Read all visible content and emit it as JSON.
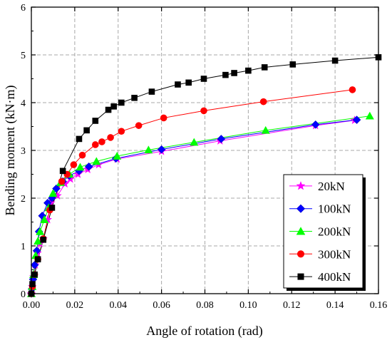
{
  "chart_data": {
    "type": "line",
    "title": "",
    "xlabel": "Angle of rotation (rad)",
    "ylabel": "Bending moment (kN·m)",
    "xlim": [
      0,
      0.16
    ],
    "ylim": [
      0,
      6
    ],
    "xticks": [
      "0.00",
      "0.02",
      "0.04",
      "0.06",
      "0.08",
      "0.10",
      "0.12",
      "0.14",
      "0.16"
    ],
    "yticks": [
      "0",
      "1",
      "2",
      "3",
      "4",
      "5",
      "6"
    ],
    "grid": true,
    "legend_position": "bottom-right",
    "series": [
      {
        "name": "20kN",
        "color": "#ff00ff",
        "marker": "star",
        "points": [
          [
            0.0,
            0.0
          ],
          [
            0.0004,
            0.15
          ],
          [
            0.001,
            0.35
          ],
          [
            0.0018,
            0.6
          ],
          [
            0.0028,
            0.85
          ],
          [
            0.004,
            1.05
          ],
          [
            0.0055,
            1.15
          ],
          [
            0.0075,
            1.55
          ],
          [
            0.009,
            1.9
          ],
          [
            0.012,
            2.05
          ],
          [
            0.0155,
            2.3
          ],
          [
            0.018,
            2.4
          ],
          [
            0.0215,
            2.5
          ],
          [
            0.026,
            2.6
          ],
          [
            0.031,
            2.7
          ],
          [
            0.0395,
            2.82
          ],
          [
            0.06,
            2.98
          ],
          [
            0.087,
            3.2
          ],
          [
            0.131,
            3.52
          ],
          [
            0.149,
            3.63
          ]
        ]
      },
      {
        "name": "100kN",
        "color": "#0000ff",
        "marker": "diamond",
        "points": [
          [
            0.0,
            0.0
          ],
          [
            0.0003,
            0.1
          ],
          [
            0.0008,
            0.3
          ],
          [
            0.0015,
            0.6
          ],
          [
            0.0025,
            0.9
          ],
          [
            0.0035,
            1.3
          ],
          [
            0.005,
            1.63
          ],
          [
            0.0075,
            1.9
          ],
          [
            0.0095,
            2.0
          ],
          [
            0.0115,
            2.2
          ],
          [
            0.0145,
            2.35
          ],
          [
            0.0175,
            2.47
          ],
          [
            0.022,
            2.57
          ],
          [
            0.0265,
            2.66
          ],
          [
            0.039,
            2.83
          ],
          [
            0.06,
            3.02
          ],
          [
            0.0875,
            3.24
          ],
          [
            0.131,
            3.54
          ],
          [
            0.15,
            3.64
          ]
        ]
      },
      {
        "name": "200kN",
        "color": "#00ff00",
        "marker": "triangle",
        "points": [
          [
            0.0,
            0.0
          ],
          [
            0.0004,
            0.15
          ],
          [
            0.001,
            0.4
          ],
          [
            0.002,
            0.8
          ],
          [
            0.003,
            1.1
          ],
          [
            0.004,
            1.3
          ],
          [
            0.006,
            1.55
          ],
          [
            0.008,
            1.8
          ],
          [
            0.01,
            2.1
          ],
          [
            0.0135,
            2.33
          ],
          [
            0.0175,
            2.5
          ],
          [
            0.0225,
            2.65
          ],
          [
            0.03,
            2.77
          ],
          [
            0.0395,
            2.88
          ],
          [
            0.054,
            3.01
          ],
          [
            0.075,
            3.17
          ],
          [
            0.108,
            3.42
          ],
          [
            0.156,
            3.72
          ]
        ]
      },
      {
        "name": "300kN",
        "color": "#ff0000",
        "marker": "circle",
        "points": [
          [
            0.0,
            0.0
          ],
          [
            0.0005,
            0.15
          ],
          [
            0.0015,
            0.4
          ],
          [
            0.003,
            0.72
          ],
          [
            0.0055,
            1.15
          ],
          [
            0.0085,
            1.75
          ],
          [
            0.014,
            2.35
          ],
          [
            0.0165,
            2.5
          ],
          [
            0.0195,
            2.7
          ],
          [
            0.0235,
            2.9
          ],
          [
            0.0295,
            3.12
          ],
          [
            0.0325,
            3.18
          ],
          [
            0.0365,
            3.27
          ],
          [
            0.0415,
            3.4
          ],
          [
            0.0495,
            3.52
          ],
          [
            0.061,
            3.68
          ],
          [
            0.0795,
            3.83
          ],
          [
            0.107,
            4.02
          ],
          [
            0.148,
            4.27
          ]
        ]
      },
      {
        "name": "400kN",
        "color": "#000000",
        "marker": "square",
        "points": [
          [
            0.0,
            0.0
          ],
          [
            0.0005,
            0.2
          ],
          [
            0.0015,
            0.4
          ],
          [
            0.003,
            0.72
          ],
          [
            0.0055,
            1.13
          ],
          [
            0.0095,
            1.8
          ],
          [
            0.0145,
            2.57
          ],
          [
            0.022,
            3.24
          ],
          [
            0.0255,
            3.42
          ],
          [
            0.0295,
            3.62
          ],
          [
            0.0355,
            3.85
          ],
          [
            0.038,
            3.92
          ],
          [
            0.0415,
            4.0
          ],
          [
            0.0475,
            4.1
          ],
          [
            0.0555,
            4.23
          ],
          [
            0.0675,
            4.38
          ],
          [
            0.0725,
            4.42
          ],
          [
            0.0795,
            4.5
          ],
          [
            0.0895,
            4.58
          ],
          [
            0.0935,
            4.62
          ],
          [
            0.1,
            4.67
          ],
          [
            0.1075,
            4.74
          ],
          [
            0.1205,
            4.8
          ],
          [
            0.14,
            4.88
          ],
          [
            0.16,
            4.95
          ]
        ]
      }
    ]
  }
}
